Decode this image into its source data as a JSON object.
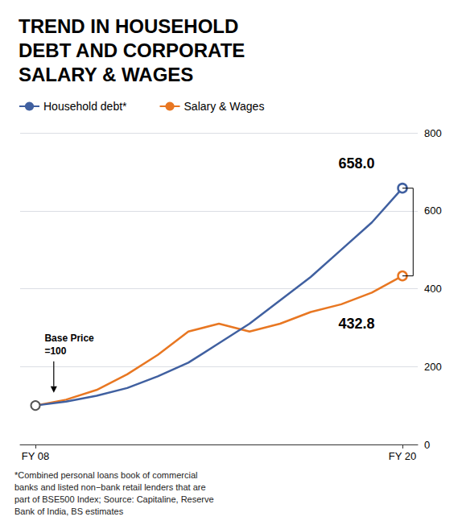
{
  "chart_data": {
    "type": "line",
    "title": "TREND IN HOUSEHOLD\nDEBT AND CORPORATE\nSALARY & WAGES",
    "categories": [
      "FY 08",
      null,
      null,
      null,
      null,
      null,
      null,
      null,
      null,
      null,
      null,
      null,
      "FY 20"
    ],
    "series": [
      {
        "name": "Household debt*",
        "color": "#4060a0",
        "values": [
          100,
          110,
          125,
          145,
          175,
          210,
          260,
          310,
          370,
          430,
          500,
          570,
          658
        ]
      },
      {
        "name": "Salary & Wages",
        "color": "#e87722",
        "values": [
          100,
          115,
          140,
          180,
          230,
          290,
          310,
          290,
          310,
          340,
          360,
          390,
          432.8
        ]
      }
    ],
    "ylim": [
      0,
      800
    ],
    "yticks": [
      0,
      200,
      400,
      600,
      800
    ],
    "grid": true,
    "legend": "top left",
    "annotations": [
      "658.0",
      "432.8",
      "Base Price",
      "=100"
    ],
    "footnote": "*Combined personal loans book of commercial\nbanks and listed non−bank retail lenders that are\npart of BSE500 Index; Source: Capitaline, Reserve\nBank of India, BS estimates"
  }
}
